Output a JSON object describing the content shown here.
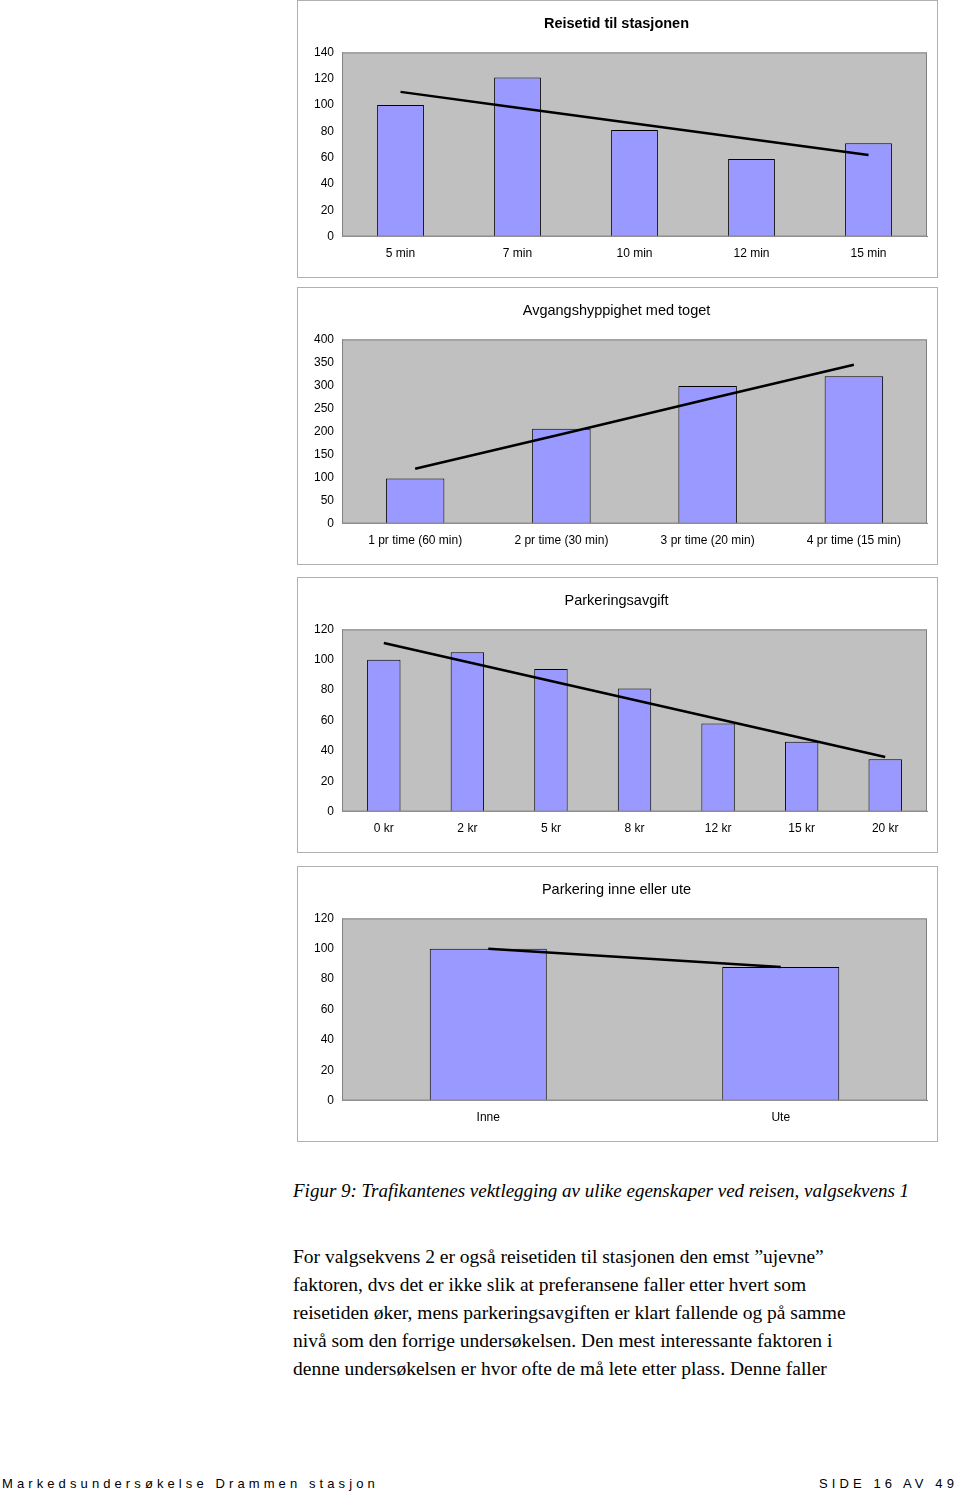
{
  "chart_data": [
    {
      "type": "bar",
      "title": "Reisetid til stasjonen",
      "categories": [
        "5 min",
        "7 min",
        "10 min",
        "12 min",
        "15 min"
      ],
      "series": [
        {
          "type": "bar",
          "color": "#9999ff",
          "values": [
            100,
            121,
            81,
            59,
            71
          ]
        },
        {
          "type": "line",
          "color": "#000000",
          "marker": "none",
          "values": [
            110,
            98,
            86,
            74,
            62
          ]
        }
      ],
      "ylim": [
        0,
        140
      ],
      "yticks": [
        0,
        20,
        40,
        60,
        80,
        100,
        120,
        140
      ],
      "grid": false
    },
    {
      "type": "bar",
      "title": "Avgangshyppighet med toget",
      "categories": [
        "1 pr time (60 min)",
        "2 pr time (30 min)",
        "3 pr time (20 min)",
        "4 pr time (15 min)"
      ],
      "series": [
        {
          "type": "bar",
          "color": "#9999ff",
          "values": [
            98,
            206,
            299,
            320
          ]
        },
        {
          "type": "line",
          "color": "#000000",
          "marker": "none",
          "values": [
            119,
            194,
            270,
            345
          ]
        }
      ],
      "ylim": [
        0,
        400
      ],
      "yticks": [
        0,
        50,
        100,
        150,
        200,
        250,
        300,
        350,
        400
      ],
      "grid": false
    },
    {
      "type": "bar",
      "title": "Parkeringsavgift",
      "categories": [
        "0 kr",
        "2 kr",
        "5 kr",
        "8 kr",
        "12 kr",
        "15 kr",
        "20 kr"
      ],
      "series": [
        {
          "type": "bar",
          "color": "#9999ff",
          "values": [
            100,
            105,
            94,
            81,
            58,
            46,
            34.5
          ]
        },
        {
          "type": "line",
          "color": "#000000",
          "marker": "none",
          "values": [
            111,
            98.5,
            86,
            73.5,
            61,
            48.5,
            36
          ]
        }
      ],
      "ylim": [
        0,
        120
      ],
      "yticks": [
        0,
        20,
        40,
        60,
        80,
        100,
        120
      ],
      "grid": false
    },
    {
      "type": "bar",
      "title": "Parkering inne eller ute",
      "categories": [
        "Inne",
        "Ute"
      ],
      "series": [
        {
          "type": "bar",
          "color": "#9999ff",
          "values": [
            100,
            88
          ]
        },
        {
          "type": "line",
          "color": "#000000",
          "marker": "none",
          "values": [
            100,
            88
          ]
        }
      ],
      "ylim": [
        0,
        120
      ],
      "yticks": [
        0,
        20,
        40,
        60,
        80,
        100,
        120
      ],
      "grid": false
    }
  ],
  "caption": "Figur 9: Trafikantenes vektlegging av ulike egenskaper ved reisen, valgsekvens 1",
  "body_lines": [
    "For valgsekvens 2 er også reisetiden til stasjonen den emst ”ujevne”",
    "faktoren, dvs det er ikke slik at preferansene faller etter hvert som",
    "reisetiden øker, mens parkeringsavgiften er klart fallende og på samme",
    "nivå som den forrige undersøkelsen. Den mest interessante faktoren i",
    "denne undersøkelsen er hvor ofte de må lete etter plass. Denne faller"
  ],
  "footer": {
    "left": "Markedsundersøkelse Drammen stasjon",
    "right": "SIDE 16 AV 49"
  }
}
